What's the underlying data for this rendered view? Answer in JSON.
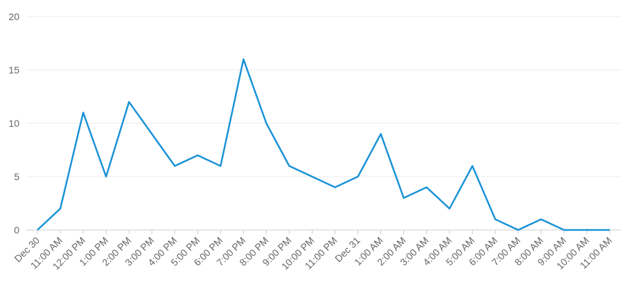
{
  "chart_data": {
    "type": "line",
    "categories": [
      "Dec 30",
      "11:00 AM",
      "12:00 PM",
      "1:00 PM",
      "2:00 PM",
      "3:00 PM",
      "4:00 PM",
      "5:00 PM",
      "6:00 PM",
      "7:00 PM",
      "8:00 PM",
      "9:00 PM",
      "10:00 PM",
      "11:00 PM",
      "Dec 31",
      "1:00 AM",
      "2:00 AM",
      "3:00 AM",
      "4:00 AM",
      "5:00 AM",
      "6:00 AM",
      "7:00 AM",
      "8:00 AM",
      "9:00 AM",
      "10:00 AM",
      "11:00 AM"
    ],
    "values": [
      0,
      2,
      11,
      5,
      12,
      9,
      6,
      7,
      6,
      16,
      10,
      6,
      5,
      4,
      5,
      9,
      3,
      4,
      2,
      6,
      1,
      0,
      1,
      0,
      0,
      0
    ],
    "color": "#1a92d6",
    "ylim": [
      0,
      20
    ],
    "yticks": [
      0,
      5,
      10,
      15,
      20
    ],
    "grid": true
  }
}
